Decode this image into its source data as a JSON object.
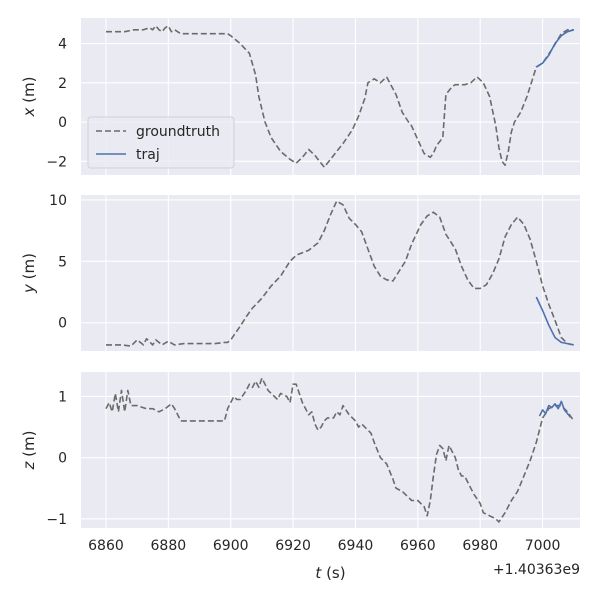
{
  "chart_data": {
    "type": "line",
    "xlabel_var": "t",
    "xlabel_unit": " (s)",
    "x_offset_label": "+1.40363e9",
    "x_ticks": [
      "6860",
      "6880",
      "6900",
      "6920",
      "6940",
      "6960",
      "6980",
      "7000"
    ],
    "xlim": [
      6852,
      7012
    ],
    "legend": {
      "placement": "lower-left of top panel",
      "entries": [
        "groundtruth",
        "traj"
      ]
    },
    "colors": {
      "groundtruth": "#6b6b6b",
      "traj": "#4c72b0",
      "panel_bg": "#eaeaf2",
      "grid": "#ffffff"
    },
    "panels": [
      {
        "ylabel_var": "x",
        "ylabel_unit": " (m)",
        "ylim": [
          -2.7,
          5.3
        ],
        "y_ticks": [
          4,
          2,
          0,
          -2
        ],
        "y_tick_labels": [
          "4",
          "2",
          "0",
          "−2"
        ],
        "series": [
          {
            "name": "groundtruth",
            "style": "dashed",
            "x": [
              6860,
              6866,
              6869,
              6872,
              6874,
              6875,
              6876,
              6877,
              6878,
              6879,
              6880,
              6881,
              6882,
              6884,
              6890,
              6898,
              6899,
              6900,
              6903,
              6906,
              6908,
              6909,
              6911,
              6913,
              6916,
              6919,
              6921,
              6923,
              6925,
              6927,
              6929,
              6930,
              6932,
              6934,
              6936,
              6939,
              6941,
              6943,
              6944,
              6946,
              6948,
              6950,
              6953,
              6955,
              6957,
              6958,
              6960,
              6962,
              6964,
              6965,
              6966,
              6968,
              6969,
              6971,
              6972,
              6973,
              6975,
              6977,
              6979,
              6981,
              6983,
              6985,
              6986,
              6987,
              6988,
              6989,
              6990,
              6991,
              6993,
              6995,
              6997,
              6998,
              7000,
              7003,
              7006,
              7008,
              7010
            ],
            "y": [
              4.6,
              4.6,
              4.7,
              4.7,
              4.8,
              4.7,
              4.9,
              4.7,
              4.6,
              4.8,
              4.9,
              4.6,
              4.7,
              4.5,
              4.5,
              4.5,
              4.5,
              4.4,
              4.0,
              3.5,
              2.4,
              1.3,
              0.0,
              -0.8,
              -1.5,
              -1.9,
              -2.1,
              -1.8,
              -1.4,
              -1.7,
              -2.1,
              -2.3,
              -1.9,
              -1.5,
              -1.1,
              -0.4,
              0.3,
              1.2,
              2.0,
              2.2,
              2.0,
              2.3,
              1.4,
              0.5,
              0.0,
              -0.2,
              -0.9,
              -1.6,
              -1.8,
              -1.6,
              -1.2,
              -0.8,
              1.4,
              1.8,
              1.9,
              1.9,
              1.9,
              2.0,
              2.3,
              2.0,
              1.3,
              -0.2,
              -1.3,
              -2.0,
              -2.2,
              -1.5,
              -0.5,
              0.0,
              0.5,
              1.3,
              2.3,
              2.8,
              3.0,
              3.7,
              4.5,
              4.7,
              4.7
            ]
          },
          {
            "name": "traj",
            "style": "solid",
            "x": [
              6998,
              7000,
              7002,
              7004,
              7006,
              7008,
              7010
            ],
            "y": [
              2.8,
              3.0,
              3.4,
              4.0,
              4.4,
              4.6,
              4.7
            ]
          }
        ]
      },
      {
        "ylabel_var": "y",
        "ylabel_unit": " (m)",
        "ylim": [
          -2.3,
          10.4
        ],
        "y_ticks": [
          10,
          5,
          0
        ],
        "y_tick_labels": [
          "10",
          "5",
          "0"
        ],
        "series": [
          {
            "name": "groundtruth",
            "style": "dashed",
            "x": [
              6860,
              6865,
              6868,
              6870,
              6872,
              6873,
              6875,
              6876,
              6878,
              6880,
              6882,
              6885,
              6890,
              6895,
              6898,
              6899,
              6900,
              6903,
              6905,
              6907,
              6910,
              6913,
              6916,
              6919,
              6921,
              6923,
              6925,
              6928,
              6930,
              6932,
              6934,
              6936,
              6938,
              6940,
              6942,
              6944,
              6946,
              6948,
              6950,
              6952,
              6954,
              6956,
              6958,
              6961,
              6963,
              6965,
              6967,
              6969,
              6972,
              6974,
              6976,
              6978,
              6980,
              6982,
              6984,
              6986,
              6988,
              6990,
              6992,
              6994,
              6996,
              6998,
              7000,
              7002,
              7004,
              7006,
              7008,
              7010
            ],
            "y": [
              -1.8,
              -1.8,
              -1.9,
              -1.4,
              -1.8,
              -1.3,
              -1.8,
              -1.4,
              -1.8,
              -1.5,
              -1.8,
              -1.7,
              -1.7,
              -1.7,
              -1.6,
              -1.6,
              -1.4,
              -0.3,
              0.5,
              1.2,
              2.0,
              3.0,
              3.8,
              5.0,
              5.5,
              5.7,
              5.9,
              6.5,
              7.5,
              8.8,
              9.9,
              9.6,
              8.5,
              8.0,
              7.4,
              6.0,
              4.6,
              3.8,
              3.5,
              3.4,
              4.2,
              5.0,
              6.4,
              8.0,
              8.7,
              9.0,
              8.6,
              7.2,
              6.0,
              4.6,
              3.5,
              2.8,
              2.8,
              3.1,
              4.0,
              5.2,
              7.0,
              8.0,
              8.6,
              8.0,
              6.8,
              5.0,
              3.0,
              1.5,
              0.2,
              -1.2,
              -1.7,
              -1.8
            ]
          },
          {
            "name": "traj",
            "style": "solid",
            "x": [
              6998,
              7000,
              7002,
              7004,
              7006,
              7008,
              7010
            ],
            "y": [
              2.1,
              1.0,
              -0.2,
              -1.2,
              -1.6,
              -1.7,
              -1.8
            ]
          }
        ]
      },
      {
        "ylabel_var": "z",
        "ylabel_unit": " (m)",
        "ylim": [
          -1.15,
          1.4
        ],
        "y_ticks": [
          1,
          0,
          -1
        ],
        "y_tick_labels": [
          "1",
          "0",
          "−1"
        ],
        "series": [
          {
            "name": "groundtruth",
            "style": "dashed",
            "x": [
              6860,
              6861,
              6862,
              6863,
              6864,
              6865,
              6866,
              6867,
              6868,
              6870,
              6873,
              6875,
              6877,
              6879,
              6881,
              6882,
              6884,
              6886,
              6888,
              6890,
              6895,
              6898,
              6899,
              6900,
              6901,
              6902,
              6903,
              6905,
              6906,
              6907,
              6908,
              6909,
              6910,
              6911,
              6912,
              6913,
              6914,
              6915,
              6916,
              6918,
              6919,
              6920,
              6921,
              6923,
              6924,
              6925,
              6926,
              6927,
              6928,
              6929,
              6930,
              6931,
              6933,
              6934,
              6935,
              6936,
              6938,
              6940,
              6941,
              6942,
              6944,
              6945,
              6946,
              6948,
              6950,
              6952,
              6953,
              6955,
              6957,
              6958,
              6960,
              6962,
              6963,
              6964,
              6965,
              6966,
              6967,
              6968,
              6969,
              6970,
              6971,
              6972,
              6973,
              6974,
              6975,
              6977,
              6978,
              6980,
              6981,
              6983,
              6985,
              6986,
              6988,
              6990,
              6992,
              6994,
              6996,
              6998,
              7000,
              7002,
              7004,
              7006,
              7008,
              7010
            ],
            "y": [
              0.8,
              0.9,
              0.75,
              1.05,
              0.75,
              1.1,
              0.75,
              1.1,
              0.85,
              0.85,
              0.8,
              0.8,
              0.75,
              0.8,
              0.88,
              0.8,
              0.6,
              0.6,
              0.6,
              0.6,
              0.6,
              0.6,
              0.8,
              0.9,
              1.0,
              0.95,
              0.95,
              1.1,
              1.2,
              1.15,
              1.25,
              1.15,
              1.3,
              1.2,
              1.1,
              1.05,
              1.0,
              0.95,
              1.05,
              1.0,
              0.9,
              1.2,
              1.2,
              0.9,
              0.8,
              0.7,
              0.75,
              0.55,
              0.45,
              0.5,
              0.6,
              0.65,
              0.65,
              0.75,
              0.7,
              0.85,
              0.7,
              0.6,
              0.5,
              0.55,
              0.45,
              0.4,
              0.25,
              0.0,
              -0.1,
              -0.35,
              -0.5,
              -0.55,
              -0.65,
              -0.7,
              -0.7,
              -0.8,
              -0.95,
              -0.7,
              -0.3,
              0.05,
              0.2,
              0.15,
              -0.05,
              0.2,
              0.1,
              0.0,
              -0.2,
              -0.3,
              -0.3,
              -0.5,
              -0.6,
              -0.75,
              -0.9,
              -0.95,
              -1.0,
              -1.05,
              -0.9,
              -0.7,
              -0.55,
              -0.3,
              -0.05,
              0.25,
              0.65,
              0.8,
              0.85,
              0.85,
              0.75,
              0.6
            ]
          },
          {
            "name": "traj",
            "style": "solid",
            "x": [
              6999,
              7000,
              7001,
              7002,
              7003,
              7004,
              7005,
              7006,
              7007,
              7008,
              7009
            ],
            "y": [
              0.68,
              0.78,
              0.72,
              0.85,
              0.82,
              0.88,
              0.8,
              0.92,
              0.78,
              0.72,
              0.66
            ]
          }
        ]
      }
    ]
  }
}
